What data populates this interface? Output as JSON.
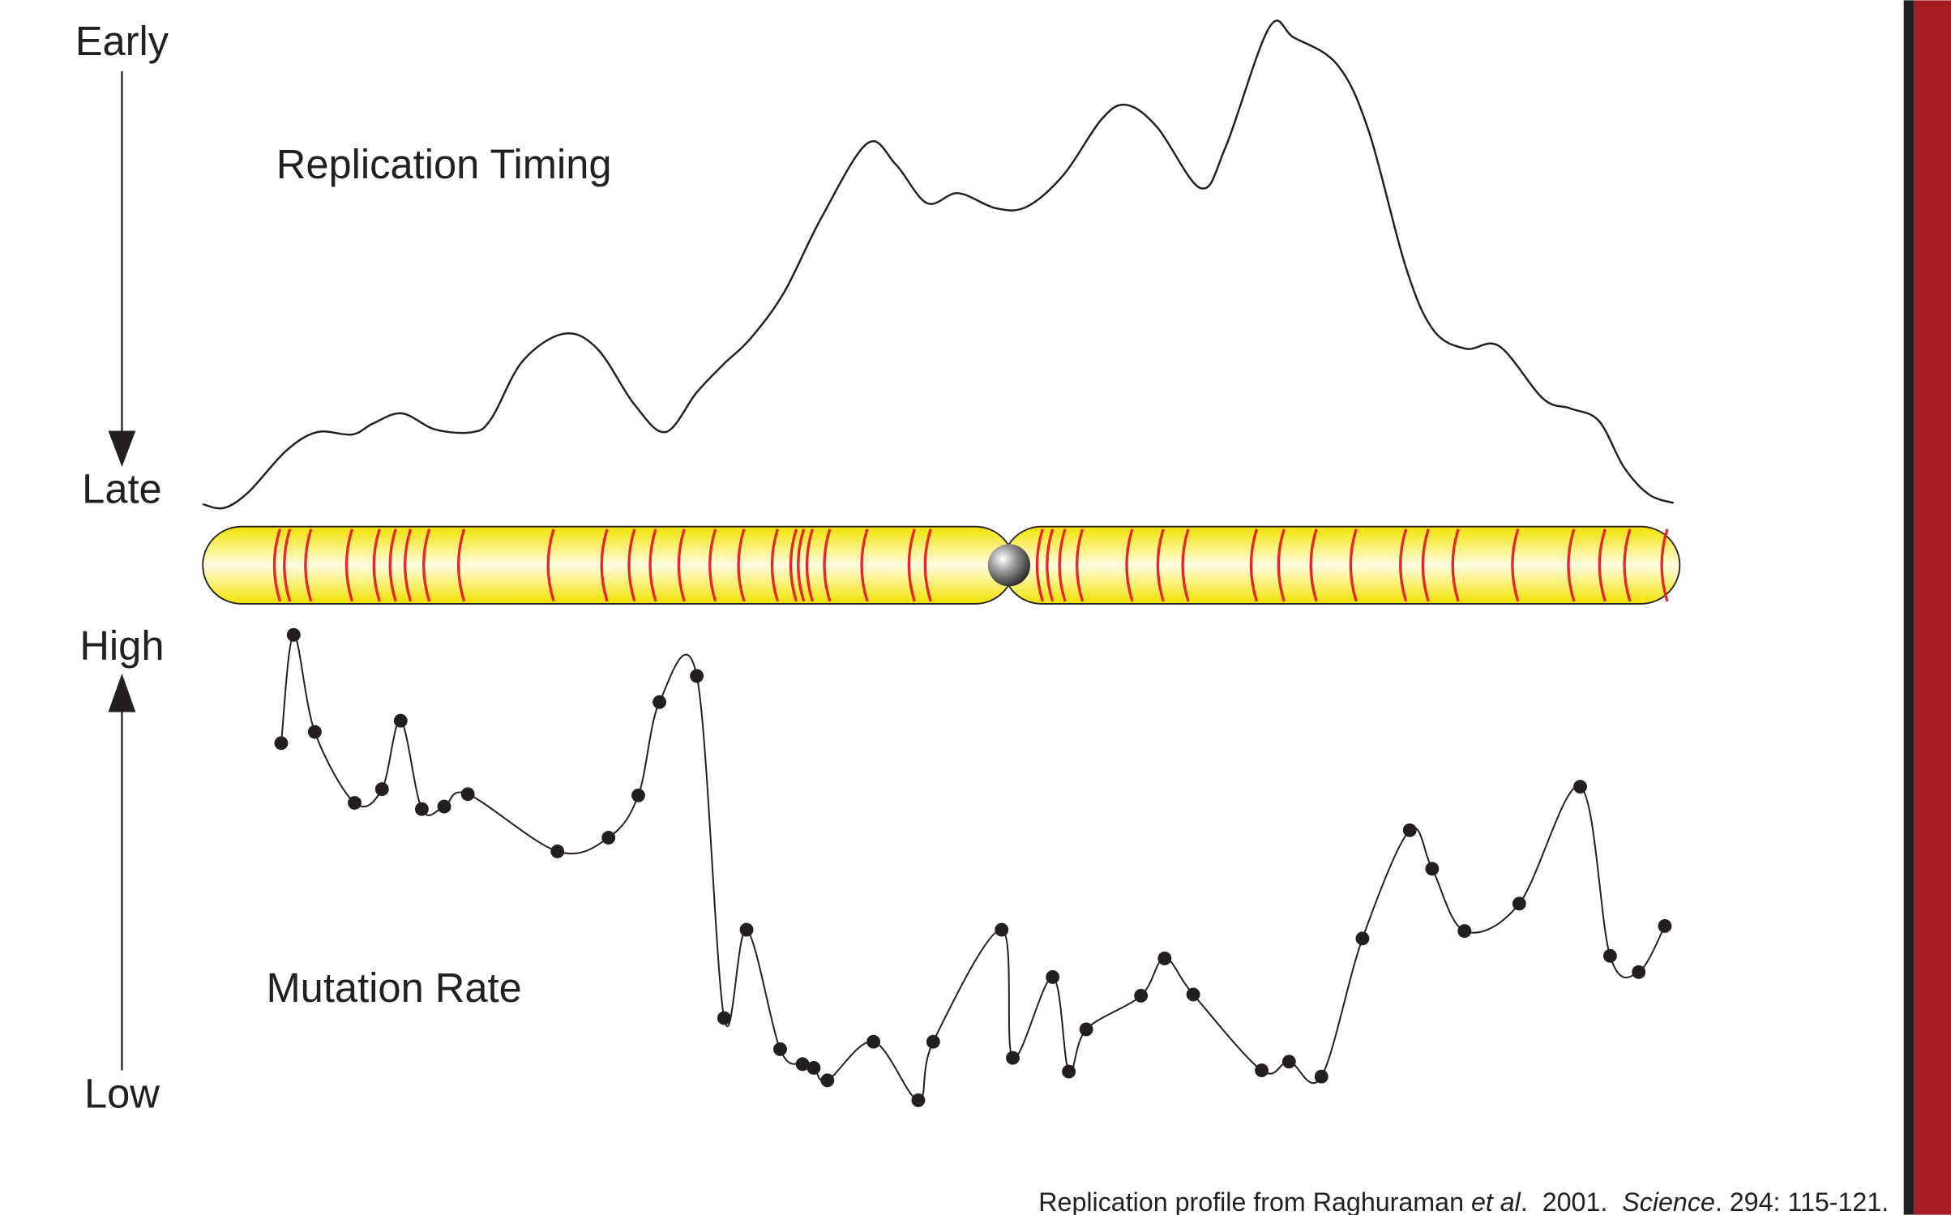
{
  "timing": {
    "early": "Early",
    "late": "Late",
    "title": "Replication Timing"
  },
  "mutation": {
    "high": "High",
    "low": "Low",
    "title": "Mutation Rate"
  },
  "citation": {
    "text1": "Replication profile from Raghuraman ",
    "etal": "et al",
    "text2": ".  2001.  ",
    "journal": "Science",
    "text3": ".  294: 115-121."
  }
}
